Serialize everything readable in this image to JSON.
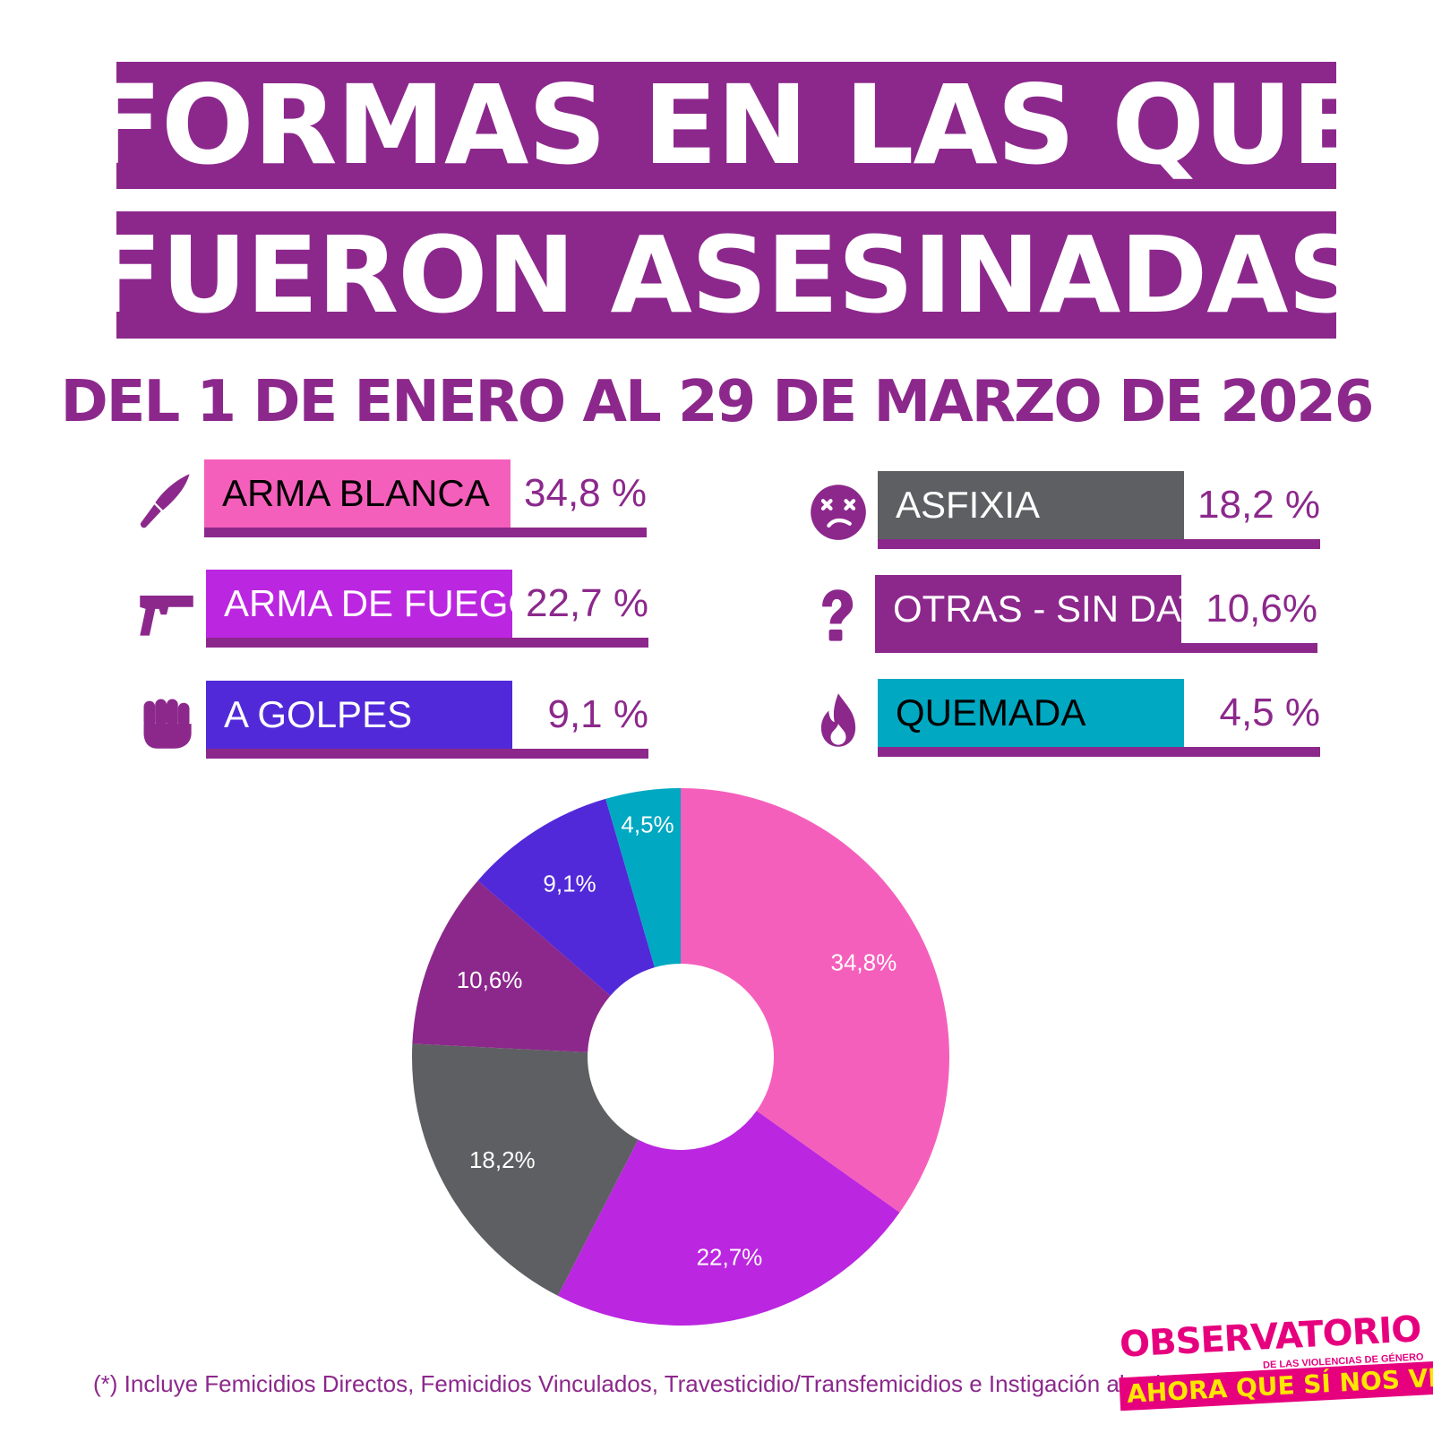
{
  "title": {
    "line1": "FORMAS EN LAS QUE",
    "line2": "FUERON ASESINADAS"
  },
  "subtitle": "DEL 1 DE ENERO AL 29 DE MARZO DE 2026",
  "colors": {
    "arma_blanca": "#f55fbc",
    "arma_de_fuego": "#bb26e0",
    "a_golpes": "#5129d9",
    "asfixia": "#5e5f62",
    "otras": "#8c288c",
    "quemada": "#00a8c2",
    "brand": "#8c288c"
  },
  "legend": [
    {
      "label": "ARMA BLANCA",
      "pct": "34,8 %",
      "icon": "knife-icon",
      "color": "#f55fbc",
      "text_color": "#000000"
    },
    {
      "label": "ARMA DE FUEGO",
      "pct": "22,7 %",
      "icon": "pistol-icon",
      "color": "#bb26e0",
      "text_color": "#ffffff"
    },
    {
      "label": "A GOLPES",
      "pct": "9,1 %",
      "icon": "fist-icon",
      "color": "#5129d9",
      "text_color": "#ffffff"
    },
    {
      "label": "ASFIXIA",
      "pct": "18,2 %",
      "icon": "dizzy-face-icon",
      "color": "#5e5f62",
      "text_color": "#ffffff"
    },
    {
      "label": "OTRAS - SIN DATOS",
      "pct": "10,6%",
      "icon": "question-mark-icon",
      "color": "#8c288c",
      "text_color": "#ffffff"
    },
    {
      "label": "QUEMADA",
      "pct": "4,5 %",
      "icon": "flame-icon",
      "color": "#00a8c2",
      "text_color": "#000000"
    }
  ],
  "chart_data": {
    "type": "pie",
    "variant": "donut",
    "categories": [
      "ARMA BLANCA",
      "ARMA DE FUEGO",
      "ASFIXIA",
      "OTRAS - SIN DATOS",
      "A GOLPES",
      "QUEMADA"
    ],
    "values": [
      34.8,
      22.7,
      18.2,
      10.6,
      9.1,
      4.5
    ],
    "labels": [
      "34,8%",
      "22,7%",
      "18,2%",
      "10,6%",
      "9,1%",
      "4,5%"
    ],
    "colors": [
      "#f55fbc",
      "#bb26e0",
      "#5e5f62",
      "#8c288c",
      "#5129d9",
      "#00a8c2"
    ],
    "start": "12 o'clock",
    "direction": "clockwise"
  },
  "footnote": "(*) Incluye Femicidios Directos, Femicidios Vinculados,  Travesticidio/Transfemicidios e Instigación al suicidio",
  "logo": {
    "top": "OBSERVATORIO",
    "sub": "DE LAS VIOLENCIAS DE GÉNERO",
    "bottom": "AHORA QUE SÍ NOS VEN"
  }
}
